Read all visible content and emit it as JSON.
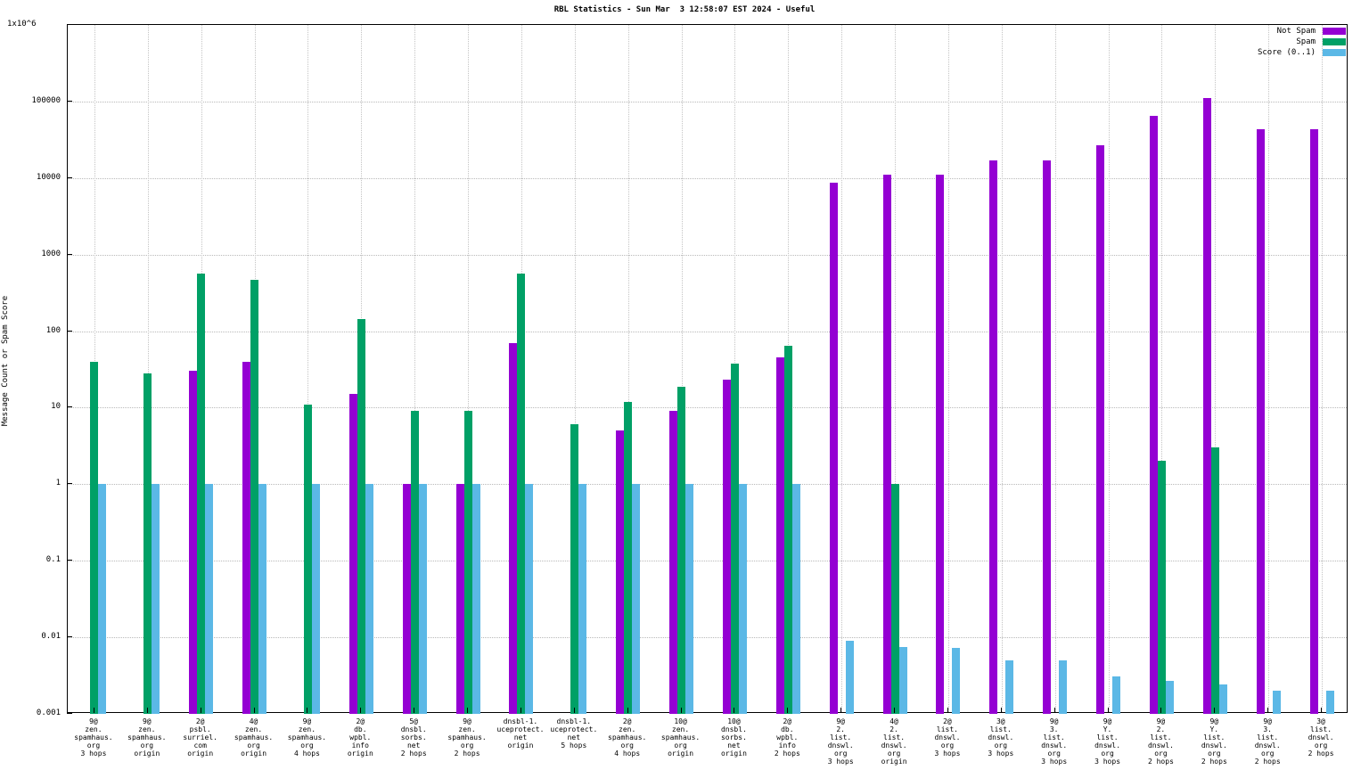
{
  "title": "RBL Statistics - Sun Mar  3 12:58:07 EST 2024 - Useful",
  "ylabel": "Message Count or Spam Score",
  "y_top_label": "1x10^6",
  "legend": [
    {
      "label": "Not Spam",
      "color": "#9400d3"
    },
    {
      "label": "Spam",
      "color": "#00a066"
    },
    {
      "label": "Score (0..1)",
      "color": "#5bb8e6"
    }
  ],
  "chart_data": {
    "type": "bar",
    "title": "RBL Statistics - Sun Mar  3 12:58:07 EST 2024 - Useful",
    "xlabel": "",
    "ylabel": "Message Count or Spam Score",
    "y_scale": "log",
    "ylim": [
      0.001,
      1000000
    ],
    "grid": true,
    "legend_position": "top-right",
    "y_ticks": [
      "1x10^6",
      "100000",
      "10000",
      "1000",
      "100",
      "10",
      "1",
      "0.1",
      "0.01",
      "0.001"
    ],
    "categories": [
      [
        "9@",
        "zen.",
        "spamhaus.",
        "org",
        "3 hops"
      ],
      [
        "9@",
        "zen.",
        "spamhaus.",
        "org",
        "origin"
      ],
      [
        "2@",
        "psbl.",
        "surriel.",
        "com",
        "origin"
      ],
      [
        "4@",
        "zen.",
        "spamhaus.",
        "org",
        "origin"
      ],
      [
        "9@",
        "zen.",
        "spamhaus.",
        "org",
        "4 hops"
      ],
      [
        "2@",
        "db.",
        "wpbl.",
        "info",
        "origin"
      ],
      [
        "5@",
        "dnsbl.",
        "sorbs.",
        "net",
        "2 hops"
      ],
      [
        "9@",
        "zen.",
        "spamhaus.",
        "org",
        "2 hops"
      ],
      [
        "dnsbl-1.",
        "uceprotect.",
        "net",
        "origin"
      ],
      [
        "dnsbl-1.",
        "uceprotect.",
        "net",
        "5 hops"
      ],
      [
        "2@",
        "zen.",
        "spamhaus.",
        "org",
        "4 hops"
      ],
      [
        "10@",
        "zen.",
        "spamhaus.",
        "org",
        "origin"
      ],
      [
        "10@",
        "dnsbl.",
        "sorbs.",
        "net",
        "origin"
      ],
      [
        "2@",
        "db.",
        "wpbl.",
        "info",
        "2 hops"
      ],
      [
        "9@",
        "2.",
        "list.",
        "dnswl.",
        "org",
        "3 hops"
      ],
      [
        "4@",
        "2.",
        "list.",
        "dnswl.",
        "org",
        "origin"
      ],
      [
        "2@",
        "list.",
        "dnswl.",
        "org",
        "3 hops"
      ],
      [
        "3@",
        "list.",
        "dnswl.",
        "org",
        "3 hops"
      ],
      [
        "9@",
        "3.",
        "list.",
        "dnswl.",
        "org",
        "3 hops"
      ],
      [
        "9@",
        "Y.",
        "list.",
        "dnswl.",
        "org",
        "3 hops"
      ],
      [
        "9@",
        "2.",
        "list.",
        "dnswl.",
        "org",
        "2 hops"
      ],
      [
        "9@",
        "Y.",
        "list.",
        "dnswl.",
        "org",
        "2 hops"
      ],
      [
        "9@",
        "3.",
        "list.",
        "dnswl.",
        "org",
        "2 hops"
      ],
      [
        "3@",
        "list.",
        "dnswl.",
        "org",
        "2 hops"
      ]
    ],
    "series": [
      {
        "name": "Not Spam",
        "color": "#9400d3",
        "values": [
          null,
          null,
          30,
          40,
          null,
          15,
          1,
          1,
          70,
          null,
          5,
          9,
          23,
          45,
          8800,
          11000,
          11000,
          17000,
          17000,
          27000,
          65000,
          110000,
          43000,
          43000
        ]
      },
      {
        "name": "Spam",
        "color": "#00a066",
        "values": [
          40,
          28,
          570,
          470,
          11,
          145,
          9,
          9,
          570,
          6,
          12,
          19,
          38,
          65,
          null,
          1,
          null,
          null,
          null,
          null,
          2,
          3,
          null,
          null
        ]
      },
      {
        "name": "Score (0..1)",
        "color": "#5bb8e6",
        "values": [
          1,
          1,
          1,
          1,
          1,
          1,
          1,
          1,
          1,
          1,
          1,
          1,
          1,
          1,
          0.009,
          0.0075,
          0.0073,
          0.005,
          0.005,
          0.0031,
          0.0027,
          0.0024,
          0.002,
          0.002
        ]
      }
    ]
  }
}
